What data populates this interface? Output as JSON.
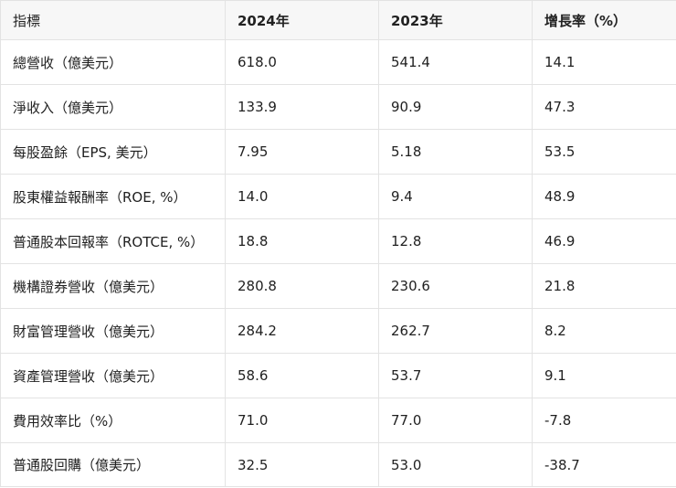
{
  "table": {
    "headers": [
      "指標",
      "2024年",
      "2023年",
      "增長率（%）"
    ],
    "rows": [
      [
        "總營收（億美元）",
        "618.0",
        "541.4",
        "14.1"
      ],
      [
        "淨收入（億美元）",
        "133.9",
        "90.9",
        "47.3"
      ],
      [
        "每股盈餘（EPS, 美元）",
        "7.95",
        "5.18",
        "53.5"
      ],
      [
        "股東權益報酬率（ROE, %）",
        "14.0",
        "9.4",
        "48.9"
      ],
      [
        "普通股本回報率（ROTCE, %）",
        "18.8",
        "12.8",
        "46.9"
      ],
      [
        "機構證券營收（億美元）",
        "280.8",
        "230.6",
        "21.8"
      ],
      [
        "財富管理營收（億美元）",
        "284.2",
        "262.7",
        "8.2"
      ],
      [
        "資產管理營收（億美元）",
        "58.6",
        "53.7",
        "9.1"
      ],
      [
        "費用效率比（%）",
        "71.0",
        "77.0",
        "-7.8"
      ],
      [
        "普通股回購（億美元）",
        "32.5",
        "53.0",
        "-38.7"
      ]
    ]
  }
}
